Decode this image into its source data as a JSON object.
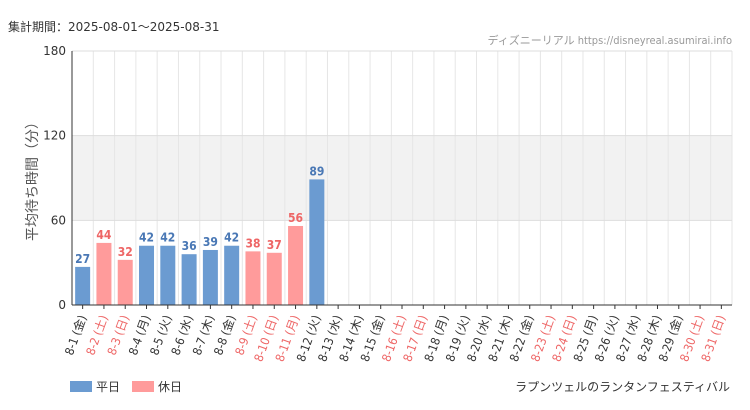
{
  "header": {
    "period_label": "集計期間：2025-08-01～2025-08-31",
    "source": "ディズニーリアル https://disneyreal.asumirai.info"
  },
  "legend": [
    {
      "label": "平日",
      "color": "#6b9bd1"
    },
    {
      "label": "休日",
      "color": "#ff9b9b"
    }
  ],
  "footer": {
    "attraction": "ラプンツェルのランタンフェスティバル"
  },
  "chart_data": {
    "type": "bar",
    "ylabel": "平均待ち時間（分）",
    "ylim": [
      0,
      180
    ],
    "yticks": [
      0,
      60,
      120,
      180
    ],
    "grid": true,
    "legend_position": "bottom-left",
    "colors": {
      "weekday": "#6b9bd1",
      "holiday": "#ff9b9b",
      "weekday_text": "#4a78b5",
      "holiday_text": "#ee6666"
    },
    "categories": [
      "8-1 (金)",
      "8-2 (土)",
      "8-3 (日)",
      "8-4 (月)",
      "8-5 (火)",
      "8-6 (水)",
      "8-7 (木)",
      "8-8 (金)",
      "8-9 (土)",
      "8-10 (日)",
      "8-11 (月)",
      "8-12 (火)",
      "8-13 (水)",
      "8-14 (木)",
      "8-15 (金)",
      "8-16 (土)",
      "8-17 (日)",
      "8-18 (月)",
      "8-19 (火)",
      "8-20 (水)",
      "8-21 (木)",
      "8-22 (金)",
      "8-23 (土)",
      "8-24 (日)",
      "8-25 (月)",
      "8-26 (火)",
      "8-27 (水)",
      "8-28 (木)",
      "8-29 (金)",
      "8-30 (土)",
      "8-31 (日)"
    ],
    "holiday": [
      false,
      true,
      true,
      false,
      false,
      false,
      false,
      false,
      true,
      true,
      true,
      false,
      false,
      false,
      false,
      true,
      true,
      false,
      false,
      false,
      false,
      false,
      true,
      true,
      false,
      false,
      false,
      false,
      false,
      true,
      true
    ],
    "values": [
      27,
      44,
      32,
      42,
      42,
      36,
      39,
      42,
      38,
      37,
      56,
      89,
      null,
      null,
      null,
      null,
      null,
      null,
      null,
      null,
      null,
      null,
      null,
      null,
      null,
      null,
      null,
      null,
      null,
      null,
      null
    ]
  }
}
